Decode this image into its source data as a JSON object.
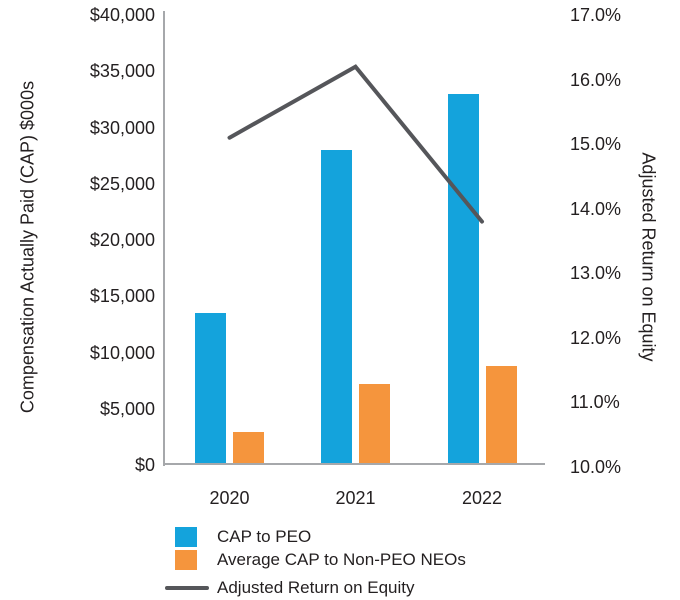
{
  "chart_data": {
    "type": "combo-bar-line",
    "title": "",
    "categories": [
      "2020",
      "2021",
      "2022"
    ],
    "series": [
      {
        "name": "CAP to PEO",
        "type": "bar",
        "axis": "left",
        "color": "#14a3dc",
        "values": [
          13500,
          28000,
          33000
        ]
      },
      {
        "name": "Average CAP to Non-PEO NEOs",
        "type": "bar",
        "axis": "left",
        "color": "#f5953d",
        "values": [
          2900,
          7200,
          8800
        ]
      },
      {
        "name": "Adjusted Return on Equity",
        "type": "line",
        "axis": "right",
        "color": "#55565a",
        "values": [
          15.1,
          16.2,
          13.8
        ]
      }
    ],
    "left_axis": {
      "label": "Compensation Actually Paid (CAP) $000s",
      "min": 0,
      "max": 40000,
      "tick_step": 5000,
      "ticks": [
        {
          "label": "$40,000",
          "value": 40000
        },
        {
          "label": "$35,000",
          "value": 35000
        },
        {
          "label": "$30,000",
          "value": 30000
        },
        {
          "label": "$25,000",
          "value": 25000
        },
        {
          "label": "$20,000",
          "value": 20000
        },
        {
          "label": "$15,000",
          "value": 15000
        },
        {
          "label": "$10,000",
          "value": 10000
        },
        {
          "label": "$5,000",
          "value": 5000
        },
        {
          "label": "$0",
          "value": 0
        }
      ]
    },
    "right_axis": {
      "label": "Adjusted Return on Equity",
      "min": 10,
      "max": 17,
      "tick_step": 1,
      "ticks": [
        {
          "label": "17.0%",
          "value": 17
        },
        {
          "label": "16.0%",
          "value": 16
        },
        {
          "label": "15.0%",
          "value": 15
        },
        {
          "label": "14.0%",
          "value": 14
        },
        {
          "label": "13.0%",
          "value": 13
        },
        {
          "label": "12.0%",
          "value": 12
        },
        {
          "label": "11.0%",
          "value": 11
        },
        {
          "label": "10.0%",
          "value": 10
        }
      ]
    },
    "grid": false,
    "legend_position": "bottom-left"
  },
  "legend": {
    "items": [
      {
        "label": "CAP to PEO",
        "swatch": "square",
        "color": "#14a3dc"
      },
      {
        "label": "Average CAP to Non-PEO NEOs",
        "swatch": "square",
        "color": "#f5953d"
      },
      {
        "label": "Adjusted Return on Equity",
        "swatch": "line",
        "color": "#55565a"
      }
    ]
  },
  "colors": {
    "bar_primary": "#14a3dc",
    "bar_secondary": "#f5953d",
    "line": "#55565a",
    "axis": "#a6a8ab",
    "text": "#231f20"
  }
}
